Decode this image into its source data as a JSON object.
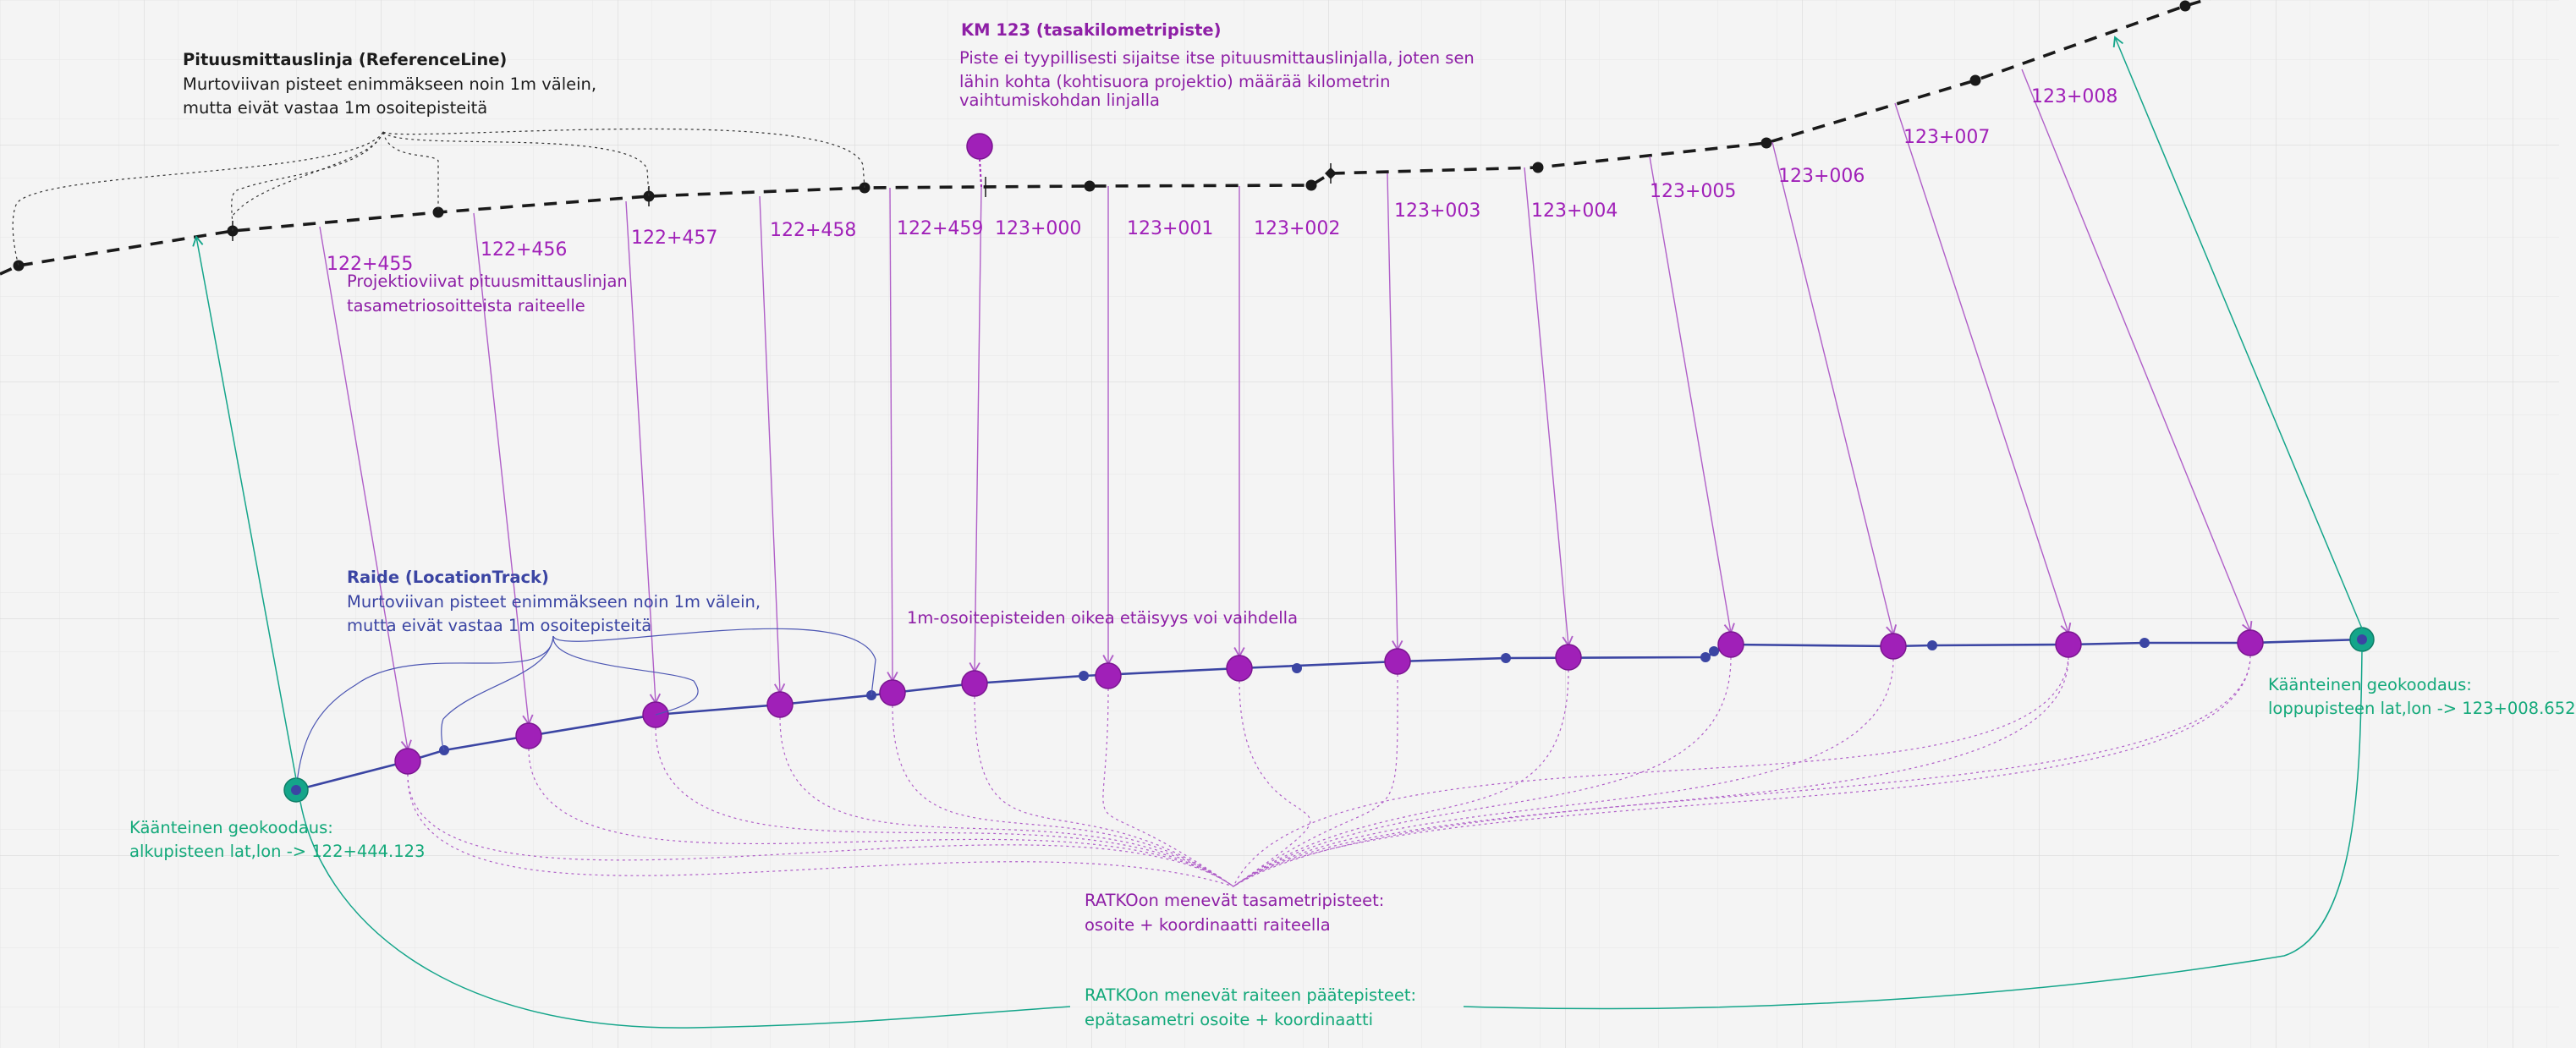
{
  "colors": {
    "background": "#f4f4f4",
    "grid": "#e3e3e3",
    "reference_line": "#1a1a1a",
    "address_point": "#a020b8",
    "address_point_stroke": "#7a1690",
    "projection_line": "#b05fc8",
    "location_track": "#3b45a3",
    "endpoint": "#14a58a",
    "endpoint_text": "#13a97a"
  },
  "reference_line": {
    "title": "Pituusmittauslinja (ReferenceLine)",
    "desc1": "Murtoviivan pisteet enimmäkseen noin 1m välein,",
    "desc2": "mutta eivät vastaa 1m osoitepisteitä"
  },
  "km_point": {
    "title": "KM 123 (tasakilometripiste)",
    "desc1": "Piste ei tyypillisesti sijaitse itse pituusmittauslinjalla, joten sen",
    "desc2": "lähin kohta (kohtisuora projektio) määrää kilometrin",
    "desc3": "vaihtumiskohdan linjalla"
  },
  "projection_note": {
    "line1": "Projektioviivat pituusmittauslinjan",
    "line2": "tasametriosoitteista raiteelle"
  },
  "location_track": {
    "title": "Raide (LocationTrack)",
    "desc1": "Murtoviivan pisteet enimmäkseen noin 1m välein,",
    "desc2": "mutta eivät vastaa 1m osoitepisteitä"
  },
  "distance_note": "1m-osoitepisteiden oikea etäisyys voi vaihdella",
  "start_geocode": {
    "line1": "Käänteinen geokoodaus:",
    "line2": "alkupisteen lat,lon -> 122+444.123"
  },
  "end_geocode": {
    "line1": "Käänteinen geokoodaus:",
    "line2": "loppupisteen lat,lon -> 123+008.652"
  },
  "ratko_points": {
    "line1": "RATKOon menevät tasametripisteet:",
    "line2": "osoite + koordinaatti raiteella"
  },
  "ratko_endpoints": {
    "line1": "RATKOon menevät raiteen päätepisteet:",
    "line2": "epätasametri osoite + koordinaatti"
  },
  "addresses": [
    "122+455",
    "122+456",
    "122+457",
    "122+458",
    "122+459",
    "123+000",
    "123+001",
    "123+002",
    "123+003",
    "123+004",
    "123+005",
    "123+006",
    "123+007",
    "123+008"
  ]
}
